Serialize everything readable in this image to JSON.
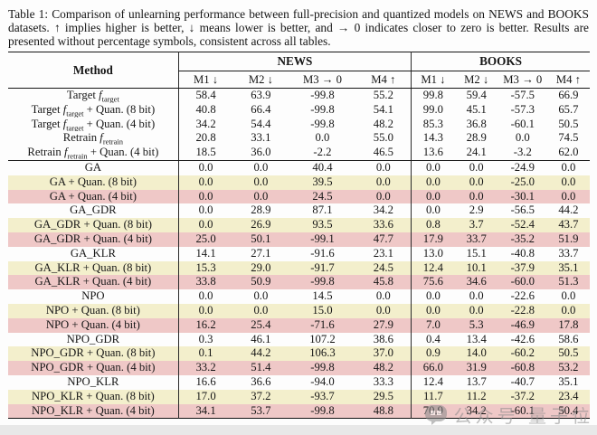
{
  "caption": "Table 1: Comparison of unlearning performance between full-precision and quantized models on NEWS and BOOKS datasets. ↑ implies higher is better, ↓ means lower is better, and → 0 indicates closer to zero is better. Results are presented without percentage symbols, consistent across all tables.",
  "watermark": {
    "text": "公众号 量子位",
    "icon": "chat-bubble"
  },
  "colors": {
    "cream_row": "#f3efcc",
    "pink_row": "#efc8c7",
    "rule": "#141414"
  },
  "table": {
    "method_header": "Method",
    "group_headers": [
      "NEWS",
      "BOOKS"
    ],
    "subcols": [
      "M1 ↓",
      "M2 ↓",
      "M3 → 0",
      "M4 ↑"
    ],
    "rows": [
      {
        "method": [
          {
            "text": "Target "
          },
          {
            "fsub": "target"
          }
        ],
        "tint": null,
        "rule_after": false,
        "news": [
          "58.4",
          "63.9",
          "-99.8",
          "55.2"
        ],
        "books": [
          "99.8",
          "59.4",
          "-57.5",
          "66.9"
        ]
      },
      {
        "method": [
          {
            "text": "Target "
          },
          {
            "fsub": "target"
          },
          {
            "text": " + Quan. (8 bit)"
          }
        ],
        "tint": null,
        "rule_after": false,
        "news": [
          "40.8",
          "66.4",
          "-99.8",
          "54.1"
        ],
        "books": [
          "99.0",
          "45.1",
          "-57.3",
          "65.7"
        ]
      },
      {
        "method": [
          {
            "text": "Target "
          },
          {
            "fsub": "target"
          },
          {
            "text": " + Quan. (4 bit)"
          }
        ],
        "tint": null,
        "rule_after": false,
        "news": [
          "34.2",
          "54.4",
          "-99.8",
          "48.2"
        ],
        "books": [
          "85.3",
          "36.8",
          "-60.1",
          "50.5"
        ]
      },
      {
        "method": [
          {
            "text": "Retrain "
          },
          {
            "fsub": "retrain"
          }
        ],
        "tint": null,
        "rule_after": false,
        "news": [
          "20.8",
          "33.1",
          "0.0",
          "55.0"
        ],
        "books": [
          "14.3",
          "28.9",
          "0.0",
          "74.5"
        ]
      },
      {
        "method": [
          {
            "text": "Retrain "
          },
          {
            "fsub": "retrain"
          },
          {
            "text": " + Quan. (4 bit)"
          }
        ],
        "tint": null,
        "rule_after": true,
        "news": [
          "18.5",
          "36.0",
          "-2.2",
          "46.5"
        ],
        "books": [
          "13.6",
          "24.1",
          "-3.2",
          "62.0"
        ]
      },
      {
        "method": [
          {
            "text": "GA"
          }
        ],
        "tint": null,
        "rule_after": false,
        "news": [
          "0.0",
          "0.0",
          "40.4",
          "0.0"
        ],
        "books": [
          "0.0",
          "0.0",
          "-24.9",
          "0.0"
        ]
      },
      {
        "method": [
          {
            "text": "GA + Quan. (8 bit)"
          }
        ],
        "tint": "cream",
        "rule_after": false,
        "news": [
          "0.0",
          "0.0",
          "39.5",
          "0.0"
        ],
        "books": [
          "0.0",
          "0.0",
          "-25.0",
          "0.0"
        ]
      },
      {
        "method": [
          {
            "text": "GA + Quan. (4 bit)"
          }
        ],
        "tint": "pink",
        "rule_after": false,
        "news": [
          "0.0",
          "0.0",
          "24.5",
          "0.0"
        ],
        "books": [
          "0.0",
          "0.0",
          "-30.1",
          "0.0"
        ]
      },
      {
        "method": [
          {
            "text": "GA_GDR"
          }
        ],
        "tint": null,
        "rule_after": false,
        "news": [
          "0.0",
          "28.9",
          "87.1",
          "34.2"
        ],
        "books": [
          "0.0",
          "2.9",
          "-56.5",
          "44.2"
        ]
      },
      {
        "method": [
          {
            "text": "GA_GDR + Quan. (8 bit)"
          }
        ],
        "tint": "cream",
        "rule_after": false,
        "news": [
          "0.0",
          "26.9",
          "93.5",
          "33.6"
        ],
        "books": [
          "0.8",
          "3.7",
          "-52.4",
          "43.7"
        ]
      },
      {
        "method": [
          {
            "text": "GA_GDR + Quan. (4 bit)"
          }
        ],
        "tint": "pink",
        "rule_after": false,
        "news": [
          "25.0",
          "50.1",
          "-99.1",
          "47.7"
        ],
        "books": [
          "17.9",
          "33.7",
          "-35.2",
          "51.9"
        ]
      },
      {
        "method": [
          {
            "text": "GA_KLR"
          }
        ],
        "tint": null,
        "rule_after": false,
        "news": [
          "14.1",
          "27.1",
          "-91.6",
          "23.1"
        ],
        "books": [
          "13.0",
          "15.1",
          "-40.8",
          "33.7"
        ]
      },
      {
        "method": [
          {
            "text": "GA_KLR + Quan. (8 bit)"
          }
        ],
        "tint": "cream",
        "rule_after": false,
        "news": [
          "15.3",
          "29.0",
          "-91.7",
          "24.5"
        ],
        "books": [
          "12.4",
          "10.1",
          "-37.9",
          "35.1"
        ]
      },
      {
        "method": [
          {
            "text": "GA_KLR + Quan. (4 bit)"
          }
        ],
        "tint": "pink",
        "rule_after": false,
        "news": [
          "33.8",
          "50.9",
          "-99.8",
          "45.8"
        ],
        "books": [
          "75.6",
          "34.6",
          "-60.0",
          "51.3"
        ]
      },
      {
        "method": [
          {
            "text": "NPO"
          }
        ],
        "tint": null,
        "rule_after": false,
        "news": [
          "0.0",
          "0.0",
          "14.5",
          "0.0"
        ],
        "books": [
          "0.0",
          "0.0",
          "-22.6",
          "0.0"
        ]
      },
      {
        "method": [
          {
            "text": "NPO + Quan. (8 bit)"
          }
        ],
        "tint": "cream",
        "rule_after": false,
        "news": [
          "0.0",
          "0.0",
          "15.0",
          "0.0"
        ],
        "books": [
          "0.0",
          "0.0",
          "-22.8",
          "0.0"
        ]
      },
      {
        "method": [
          {
            "text": "NPO + Quan. (4 bit)"
          }
        ],
        "tint": "pink",
        "rule_after": false,
        "news": [
          "16.2",
          "25.4",
          "-71.6",
          "27.9"
        ],
        "books": [
          "7.0",
          "5.3",
          "-46.9",
          "17.8"
        ]
      },
      {
        "method": [
          {
            "text": "NPO_GDR"
          }
        ],
        "tint": null,
        "rule_after": false,
        "news": [
          "0.3",
          "46.1",
          "107.2",
          "38.6"
        ],
        "books": [
          "0.4",
          "13.4",
          "-42.6",
          "58.6"
        ]
      },
      {
        "method": [
          {
            "text": "NPO_GDR + Quan. (8 bit)"
          }
        ],
        "tint": "cream",
        "rule_after": false,
        "news": [
          "0.1",
          "44.2",
          "106.3",
          "37.0"
        ],
        "books": [
          "0.9",
          "14.0",
          "-60.2",
          "50.5"
        ]
      },
      {
        "method": [
          {
            "text": "NPO_GDR + Quan. (4 bit)"
          }
        ],
        "tint": "pink",
        "rule_after": false,
        "news": [
          "33.2",
          "51.4",
          "-99.8",
          "48.2"
        ],
        "books": [
          "66.0",
          "31.9",
          "-60.8",
          "53.2"
        ]
      },
      {
        "method": [
          {
            "text": "NPO_KLR"
          }
        ],
        "tint": null,
        "rule_after": false,
        "news": [
          "16.6",
          "36.6",
          "-94.0",
          "33.3"
        ],
        "books": [
          "12.4",
          "13.7",
          "-40.7",
          "35.1"
        ]
      },
      {
        "method": [
          {
            "text": "NPO_KLR + Quan. (8 bit)"
          }
        ],
        "tint": "cream",
        "rule_after": false,
        "news": [
          "17.0",
          "37.2",
          "-93.7",
          "29.5"
        ],
        "books": [
          "11.7",
          "11.2",
          "-37.2",
          "23.4"
        ]
      },
      {
        "method": [
          {
            "text": "NPO_KLR + Quan. (4 bit)"
          }
        ],
        "tint": "pink",
        "rule_after": false,
        "news": [
          "34.1",
          "53.7",
          "-99.8",
          "48.8"
        ],
        "books": [
          "70.9",
          "34.2",
          "-60.1",
          "50.4"
        ]
      }
    ]
  }
}
